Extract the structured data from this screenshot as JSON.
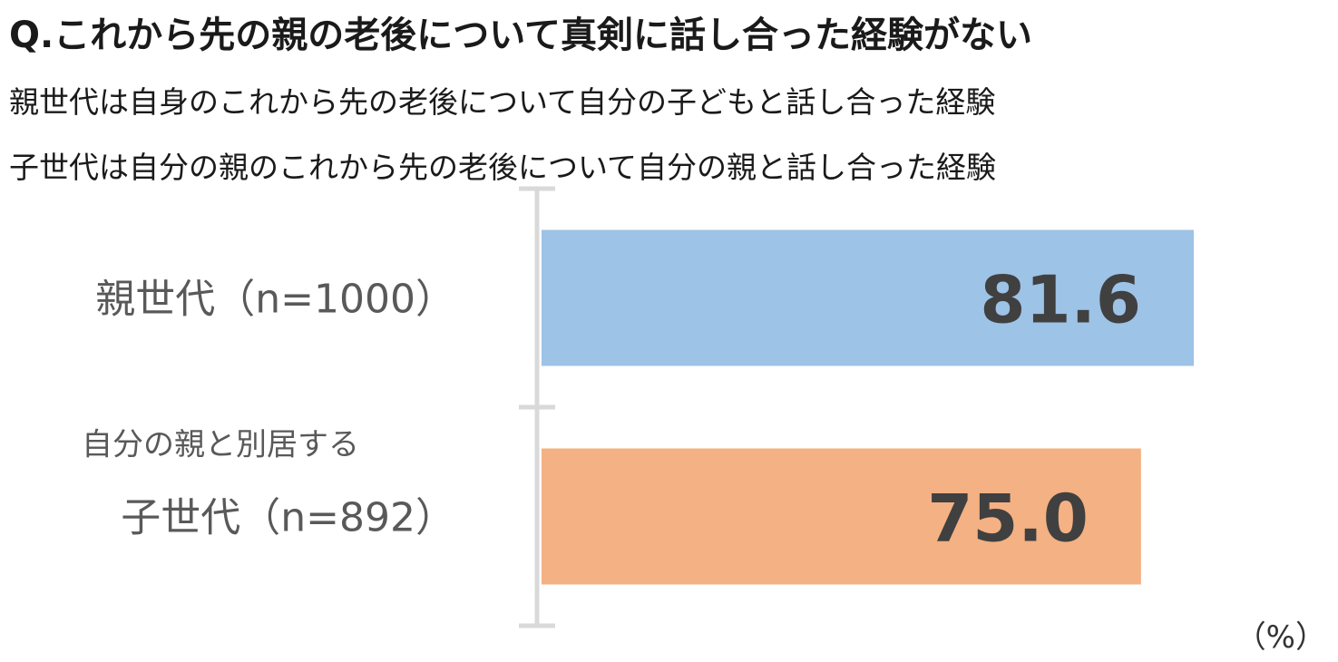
{
  "question": "Q.これから先の親の老後について真剣に話し合った経験がない",
  "notes": [
    "親世代は自身のこれから先の老後について自分の子どもと話し合った経験",
    "子世代は自分の親のこれから先の老後について自分の親と話し合った経験"
  ],
  "chart_data": {
    "type": "bar",
    "orientation": "horizontal",
    "unit_label": "（%）",
    "xlim": [
      0,
      100
    ],
    "grid": false,
    "categories": [
      {
        "label": "親世代（n=1000）",
        "sublabel": "",
        "value": 81.6,
        "value_label": "81.6",
        "color": "#9dc3e6"
      },
      {
        "label": "子世代（n=892）",
        "sublabel": "自分の親と別居する",
        "value": 75.0,
        "value_label": "75.0",
        "color": "#f4b183"
      }
    ]
  }
}
